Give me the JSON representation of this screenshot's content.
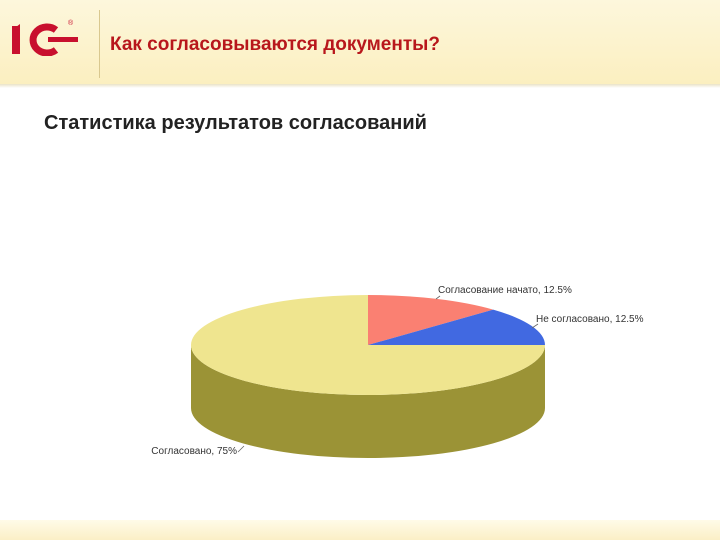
{
  "header": {
    "title": "Как согласовываются документы?"
  },
  "section": {
    "title": "Статистика результатов согласований"
  },
  "chart_data": {
    "type": "pie",
    "style": "3d",
    "slices": [
      {
        "label": "Согласовано, 75%",
        "value": 75,
        "color": "#efe58f",
        "side_color": "#9b9336"
      },
      {
        "label": "Согласование начато, 12.5%",
        "value": 12.5,
        "color": "#fa8072",
        "side_color": "#b35548"
      },
      {
        "label": "Не согласовано, 12.5%",
        "value": 12.5,
        "color": "#4169e1",
        "side_color": "#2b4aa3"
      }
    ]
  }
}
